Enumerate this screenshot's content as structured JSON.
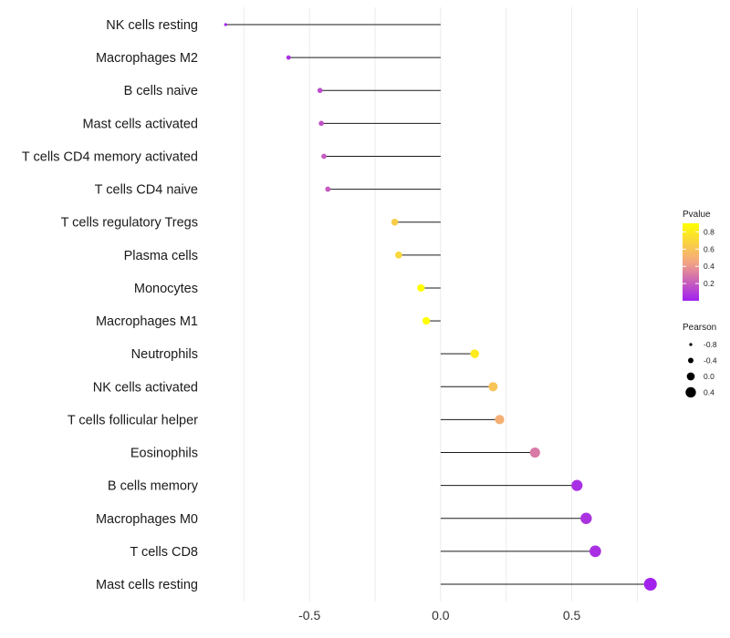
{
  "chart_data": {
    "type": "lollipop",
    "title": "",
    "xlabel": "",
    "ylabel": "",
    "xlim": [
      -0.88,
      0.86
    ],
    "x_ticks": [
      -0.5,
      0.0,
      0.5
    ],
    "x_tick_labels": [
      "-0.5",
      "0.0",
      "0.5"
    ],
    "grid": true,
    "colors": {
      "low": "#a020f0",
      "mid": "#f4a582",
      "high": "#ffff00",
      "stem": "#1a1a1a",
      "grid": "#ebebeb"
    },
    "categories": [
      "NK cells resting",
      "Macrophages M2",
      "B cells naive",
      "Mast cells activated",
      "T cells CD4 memory activated",
      "T cells CD4 naive",
      "T cells regulatory  Tregs ",
      "Plasma cells",
      "Monocytes",
      "Macrophages M1",
      "Neutrophils",
      "NK cells activated",
      "T cells follicular helper",
      "Eosinophils",
      "B cells memory",
      "Macrophages M0",
      "T cells CD8",
      "Mast cells resting"
    ],
    "values": [
      -0.82,
      -0.58,
      -0.46,
      -0.455,
      -0.445,
      -0.43,
      -0.175,
      -0.16,
      -0.075,
      -0.055,
      0.13,
      0.2,
      0.225,
      0.36,
      0.52,
      0.555,
      0.59,
      0.8
    ],
    "pvalues": [
      0.01,
      0.05,
      0.15,
      0.17,
      0.2,
      0.2,
      0.65,
      0.7,
      0.92,
      0.95,
      0.8,
      0.6,
      0.5,
      0.3,
      0.05,
      0.06,
      0.05,
      0.01
    ],
    "legend_color": {
      "title": "Pvalue",
      "range": [
        0.0,
        0.9
      ],
      "ticks": [
        0.2,
        0.4,
        0.6,
        0.8
      ],
      "tick_labels": [
        "0.2",
        "0.4",
        "0.6",
        "0.8"
      ],
      "placement": "right"
    },
    "legend_size": {
      "title": "Pearson",
      "values": [
        -0.8,
        -0.4,
        0.0,
        0.4
      ],
      "labels": [
        "-0.8",
        "-0.4",
        "0.0",
        "0.4"
      ],
      "placement": "right"
    }
  }
}
